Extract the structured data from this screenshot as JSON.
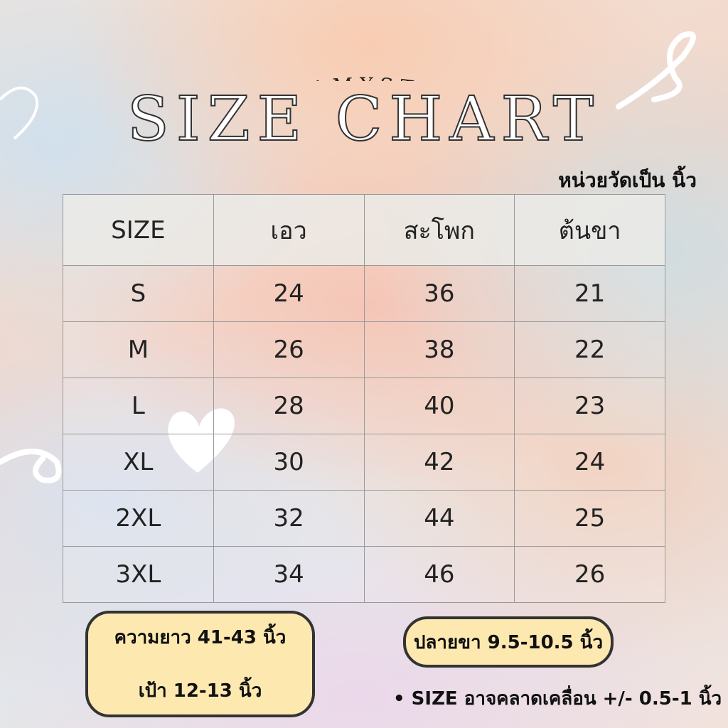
{
  "brand": "CREAMYSTORE",
  "title": "SIZE CHART",
  "unit_note": "หน่วยวัดเป็น นิ้ว",
  "table": {
    "headers": [
      "SIZE",
      "เอว",
      "สะโพก",
      "ต้นขา"
    ],
    "rows": [
      [
        "S",
        "24",
        "36",
        "21"
      ],
      [
        "M",
        "26",
        "38",
        "22"
      ],
      [
        "L",
        "28",
        "40",
        "23"
      ],
      [
        "XL",
        "30",
        "42",
        "24"
      ],
      [
        "2XL",
        "32",
        "44",
        "25"
      ],
      [
        "3XL",
        "34",
        "46",
        "26"
      ]
    ]
  },
  "info": {
    "length": "ความยาว  41-43  นิ้ว",
    "crotch": "เป้า  12-13  นิ้ว",
    "hem": "ปลายขา  9.5-10.5  นิ้ว",
    "tolerance": "SIZE อาจคลาดเคลื่อน +/- 0.5-1 นิ้ว"
  },
  "colors": {
    "pill": "#fde9b0",
    "outline": "#333333"
  }
}
